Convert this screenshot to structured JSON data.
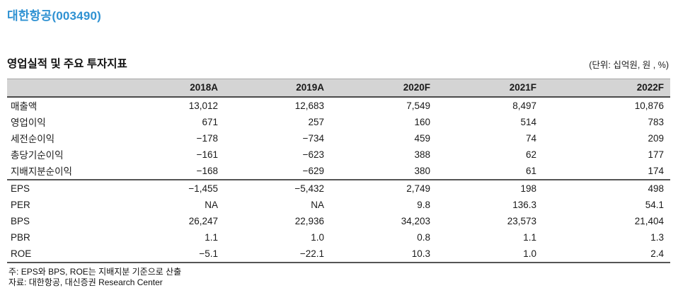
{
  "page": {
    "ticker_title": "대한항공(003490)"
  },
  "table": {
    "title": "영업실적 및 주요 투자지표",
    "unit_label": "(단위: 십억원, 원 , %)",
    "columns": [
      "2018A",
      "2019A",
      "2020F",
      "2021F",
      "2022F"
    ],
    "sections": [
      {
        "rows": [
          {
            "label": "매출액",
            "values": [
              "13,012",
              "12,683",
              "7,549",
              "8,497",
              "10,876"
            ]
          },
          {
            "label": "영업이익",
            "values": [
              "671",
              "257",
              "160",
              "514",
              "783"
            ]
          },
          {
            "label": "세전순이익",
            "values": [
              "−178",
              "−734",
              "459",
              "74",
              "209"
            ]
          },
          {
            "label": "총당기순이익",
            "values": [
              "−161",
              "−623",
              "388",
              "62",
              "177"
            ]
          },
          {
            "label": "지배지분순이익",
            "values": [
              "−168",
              "−629",
              "380",
              "61",
              "174"
            ]
          }
        ]
      },
      {
        "rows": [
          {
            "label": "EPS",
            "values": [
              "−1,455",
              "−5,432",
              "2,749",
              "198",
              "498"
            ]
          },
          {
            "label": "PER",
            "values": [
              "NA",
              "NA",
              "9.8",
              "136.3",
              "54.1"
            ]
          },
          {
            "label": "BPS",
            "values": [
              "26,247",
              "22,936",
              "34,203",
              "23,573",
              "21,404"
            ]
          },
          {
            "label": "PBR",
            "values": [
              "1.1",
              "1.0",
              "0.8",
              "1.1",
              "1.3"
            ]
          },
          {
            "label": "ROE",
            "values": [
              "−5.1",
              "−22.1",
              "10.3",
              "1.0",
              "2.4"
            ]
          }
        ]
      }
    ],
    "notes": [
      "주: EPS와 BPS, ROE는 지배지분 기준으로 산출",
      "자료: 대한항공, 대신증권 Research Center"
    ]
  },
  "colors": {
    "ticker_blue": "#2e91d2",
    "header_band_gray": "#d4d4d4",
    "heavy_rule_gray": "#4a4a4a"
  }
}
